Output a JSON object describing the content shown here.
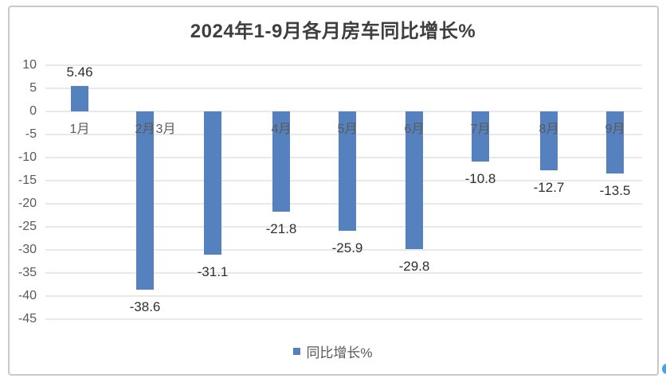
{
  "chart_data": {
    "type": "bar",
    "title": "2024年1-9月各月房车同比增长%",
    "categories": [
      "1月",
      "2月",
      "3月",
      "4月",
      "5月",
      "6月",
      "7月",
      "8月",
      "9月"
    ],
    "values": [
      5.46,
      -38.6,
      -31.1,
      -21.8,
      -25.9,
      -29.8,
      -10.8,
      -12.7,
      -13.5
    ],
    "value_labels": [
      "5.46",
      "-38.6",
      "-31.1",
      "-21.8",
      "-25.9",
      "-29.8",
      "-10.8",
      "-12.7",
      "-13.5"
    ],
    "series_name": "同比增长%",
    "xlabel": "",
    "ylabel": "",
    "ylim": [
      -45,
      10
    ],
    "y_ticks": [
      10,
      5,
      0,
      -5,
      -10,
      -15,
      -20,
      -25,
      -30,
      -35,
      -40,
      -45
    ],
    "y_tick_labels": [
      "10",
      "5",
      "0",
      "-5",
      "-10",
      "-15",
      "-20",
      "-25",
      "-30",
      "-35",
      "-40",
      "-45"
    ],
    "grid": true,
    "legend_position": "bottom",
    "bar_color": "#5581be",
    "gridline_color": "#e9e9e9",
    "layout_note": "category labels sit just below the zero axis; the 3月 label renders squeezed immediately to the right of the 2月 label instead of under its own bar"
  },
  "frame": {
    "border_color": "#c9c9c9"
  },
  "artifacts": {
    "edge_handle_color": "#4aa1e3"
  }
}
